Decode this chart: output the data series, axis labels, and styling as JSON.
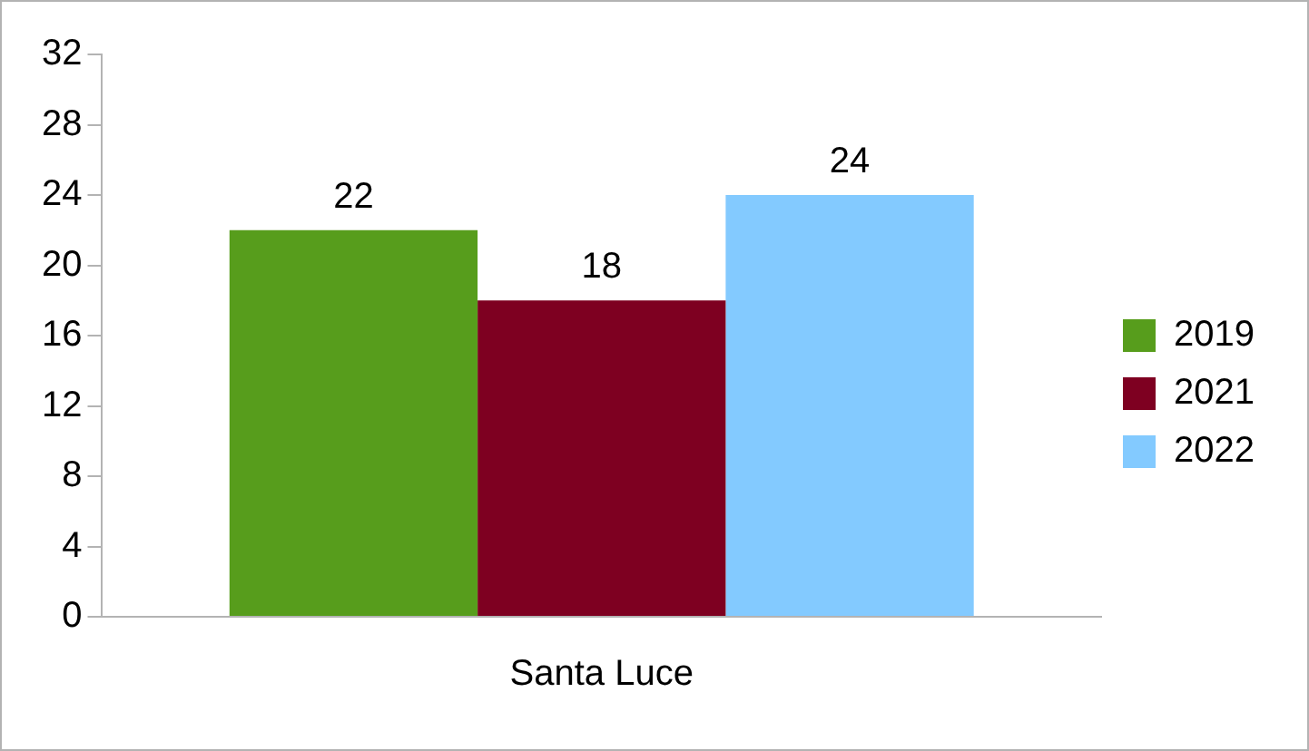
{
  "chart_data": {
    "type": "bar",
    "categories": [
      "Santa Luce"
    ],
    "series": [
      {
        "name": "2019",
        "color": "#579d1c",
        "values": [
          22
        ]
      },
      {
        "name": "2021",
        "color": "#7e0021",
        "values": [
          18
        ]
      },
      {
        "name": "2022",
        "color": "#83caff",
        "values": [
          24
        ]
      }
    ],
    "ylim": [
      0,
      32
    ],
    "yticks": [
      0,
      4,
      8,
      12,
      16,
      20,
      24,
      28,
      32
    ],
    "grid": false,
    "legend": "right",
    "data_labels": true
  }
}
